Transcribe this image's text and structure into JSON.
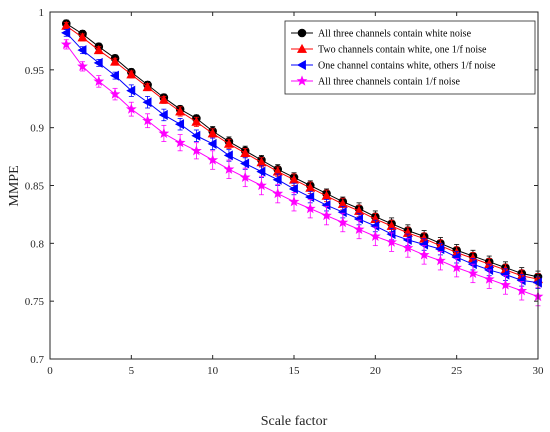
{
  "chart_data": {
    "type": "line",
    "title": "",
    "xlabel": "Scale factor",
    "ylabel": "MMPE",
    "xlim": [
      0,
      30
    ],
    "ylim": [
      0.7,
      1.0
    ],
    "x_ticks": [
      "0",
      "5",
      "10",
      "15",
      "20",
      "25",
      "30"
    ],
    "y_ticks": [
      "0.7",
      "0.75",
      "0.8",
      "0.85",
      "0.9",
      "0.95",
      "1"
    ],
    "grid": false,
    "legend_position": "top-right",
    "x": [
      1,
      2,
      3,
      4,
      5,
      6,
      7,
      8,
      9,
      10,
      11,
      12,
      13,
      14,
      15,
      16,
      17,
      18,
      19,
      20,
      21,
      22,
      23,
      24,
      25,
      26,
      27,
      28,
      29,
      30
    ],
    "series": [
      {
        "name": "All three channels contain white noise",
        "color": "#000000",
        "marker": "circle",
        "marker_fill": "#000000",
        "values": [
          0.99,
          0.981,
          0.97,
          0.96,
          0.948,
          0.937,
          0.926,
          0.916,
          0.908,
          0.897,
          0.888,
          0.88,
          0.872,
          0.864,
          0.857,
          0.85,
          0.843,
          0.836,
          0.83,
          0.823,
          0.817,
          0.811,
          0.806,
          0.8,
          0.794,
          0.789,
          0.784,
          0.779,
          0.774,
          0.771
        ],
        "error": [
          0.003,
          0.003,
          0.003,
          0.003,
          0.003,
          0.003,
          0.003,
          0.003,
          0.003,
          0.004,
          0.004,
          0.004,
          0.004,
          0.004,
          0.004,
          0.004,
          0.004,
          0.004,
          0.005,
          0.005,
          0.005,
          0.005,
          0.005,
          0.005,
          0.005,
          0.005,
          0.005,
          0.005,
          0.005,
          0.005
        ]
      },
      {
        "name": "Two channels contain white, one 1/f noise",
        "color": "#ff0000",
        "marker": "triangle-up",
        "marker_fill": "#ff0000",
        "values": [
          0.988,
          0.978,
          0.967,
          0.957,
          0.946,
          0.935,
          0.924,
          0.914,
          0.905,
          0.895,
          0.886,
          0.878,
          0.87,
          0.862,
          0.855,
          0.848,
          0.841,
          0.834,
          0.828,
          0.821,
          0.815,
          0.809,
          0.804,
          0.798,
          0.792,
          0.787,
          0.782,
          0.777,
          0.772,
          0.769
        ],
        "error": [
          0.003,
          0.003,
          0.003,
          0.003,
          0.003,
          0.003,
          0.003,
          0.004,
          0.004,
          0.004,
          0.004,
          0.004,
          0.004,
          0.004,
          0.005,
          0.005,
          0.005,
          0.005,
          0.005,
          0.005,
          0.005,
          0.005,
          0.005,
          0.005,
          0.005,
          0.005,
          0.005,
          0.005,
          0.005,
          0.005
        ]
      },
      {
        "name": "One channel contains white, others 1/f noise",
        "color": "#0000ff",
        "marker": "triangle-left",
        "marker_fill": "#0000ff",
        "values": [
          0.982,
          0.967,
          0.956,
          0.945,
          0.932,
          0.922,
          0.911,
          0.903,
          0.893,
          0.886,
          0.876,
          0.869,
          0.862,
          0.855,
          0.847,
          0.84,
          0.833,
          0.827,
          0.821,
          0.815,
          0.808,
          0.803,
          0.799,
          0.795,
          0.788,
          0.782,
          0.777,
          0.773,
          0.768,
          0.766
        ],
        "error": [
          0.003,
          0.003,
          0.003,
          0.003,
          0.005,
          0.005,
          0.005,
          0.005,
          0.005,
          0.005,
          0.005,
          0.005,
          0.005,
          0.005,
          0.005,
          0.005,
          0.005,
          0.005,
          0.005,
          0.005,
          0.005,
          0.005,
          0.005,
          0.005,
          0.005,
          0.005,
          0.005,
          0.005,
          0.005,
          0.005
        ]
      },
      {
        "name": "All three channels contain 1/f noise",
        "color": "#ff00ff",
        "marker": "star",
        "marker_fill": "#ff00ff",
        "values": [
          0.972,
          0.953,
          0.94,
          0.929,
          0.916,
          0.906,
          0.895,
          0.887,
          0.88,
          0.872,
          0.864,
          0.857,
          0.85,
          0.843,
          0.836,
          0.83,
          0.824,
          0.818,
          0.812,
          0.806,
          0.801,
          0.796,
          0.79,
          0.785,
          0.779,
          0.774,
          0.769,
          0.764,
          0.759,
          0.754
        ],
        "error": [
          0.004,
          0.004,
          0.005,
          0.005,
          0.006,
          0.006,
          0.007,
          0.007,
          0.007,
          0.008,
          0.008,
          0.008,
          0.008,
          0.008,
          0.008,
          0.008,
          0.008,
          0.008,
          0.008,
          0.008,
          0.008,
          0.008,
          0.008,
          0.008,
          0.008,
          0.008,
          0.008,
          0.008,
          0.008,
          0.008
        ]
      }
    ]
  }
}
